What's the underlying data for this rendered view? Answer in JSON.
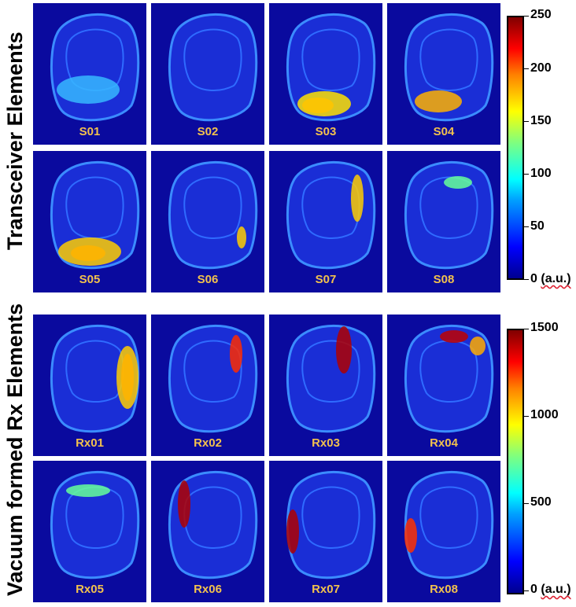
{
  "sections": [
    {
      "label": "Transceiver Elements",
      "colorbar": {
        "ticks": [
          "250",
          "200",
          "150",
          "100",
          "50",
          "0"
        ],
        "unit": "(a.u.)"
      },
      "tiles": [
        "S01",
        "S02",
        "S03",
        "S04",
        "S05",
        "S06",
        "S07",
        "S08"
      ]
    },
    {
      "label": "Vacuum formed Rx Elements",
      "colorbar": {
        "ticks": [
          "1500",
          "1000",
          "500",
          "0"
        ],
        "unit": "(a.u.)"
      },
      "tiles": [
        "Rx01",
        "Rx02",
        "Rx03",
        "Rx04",
        "Rx05",
        "Rx06",
        "Rx07",
        "Rx08"
      ]
    }
  ],
  "colors": {
    "background_jet": "#0a0a9e",
    "label": "#f2c14e"
  }
}
